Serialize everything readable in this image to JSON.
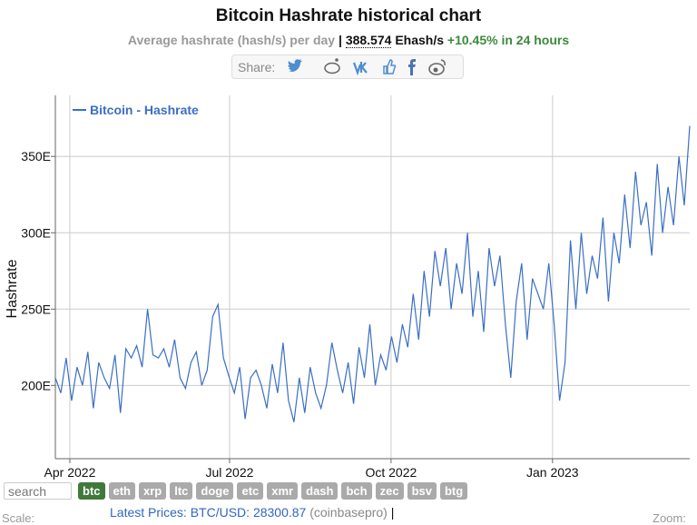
{
  "header": {
    "title": "Bitcoin Hashrate historical chart",
    "subtitle": "Average hashrate (hash/s) per day",
    "separator": "|",
    "current_value": 388.574,
    "current_unit": "Ehash/s",
    "change": "+10.45% in 24 hours"
  },
  "share": {
    "label": "Share:"
  },
  "chart_data": {
    "type": "line",
    "ylabel": "Hashrate",
    "ylim": [
      152,
      390
    ],
    "yticks": [
      {
        "value": 200,
        "label": "200E"
      },
      {
        "value": 250,
        "label": "250E"
      },
      {
        "value": 300,
        "label": "300E"
      },
      {
        "value": 350,
        "label": "350E"
      }
    ],
    "xticks": [
      {
        "value": "2022-04",
        "label": "Apr 2022"
      },
      {
        "value": "2022-07",
        "label": "Jul 2022"
      },
      {
        "value": "2022-10",
        "label": "Oct 2022"
      },
      {
        "value": "2023-01",
        "label": "Jan 2023"
      }
    ],
    "grid": true,
    "legend": "top-left",
    "series": [
      {
        "name": "Bitcoin - Hashrate",
        "color": "#3a6fc4",
        "values": [
          205,
          195,
          218,
          190,
          212,
          200,
          222,
          185,
          215,
          205,
          198,
          220,
          182,
          224,
          218,
          226,
          212,
          250,
          220,
          218,
          224,
          212,
          230,
          205,
          198,
          215,
          222,
          200,
          210,
          245,
          253,
          218,
          206,
          195,
          212,
          178,
          205,
          210,
          200,
          185,
          214,
          195,
          228,
          190,
          176,
          205,
          182,
          212,
          195,
          185,
          200,
          228,
          210,
          195,
          215,
          188,
          225,
          205,
          240,
          200,
          220,
          210,
          232,
          215,
          240,
          225,
          260,
          230,
          275,
          245,
          288,
          265,
          290,
          250,
          280,
          260,
          300,
          245,
          275,
          235,
          290,
          265,
          285,
          240,
          205,
          255,
          280,
          230,
          270,
          260,
          250,
          280,
          240,
          190,
          215,
          295,
          250,
          300,
          260,
          285,
          270,
          310,
          255,
          300,
          280,
          325,
          290,
          340,
          305,
          320,
          285,
          345,
          300,
          330,
          305,
          350,
          318,
          370
        ]
      }
    ]
  },
  "controls": {
    "search_placeholder": "search",
    "coins": [
      "btc",
      "eth",
      "xrp",
      "ltc",
      "doge",
      "etc",
      "xmr",
      "dash",
      "bch",
      "zec",
      "bsv",
      "btg"
    ],
    "active": "btc"
  },
  "prices": {
    "label": "Latest Prices: BTC/USD:",
    "value": 28300.87,
    "source": "(coinbasepro)",
    "separator": "|"
  },
  "footer": {
    "scale": "Scale:",
    "zoom": "Zoom:"
  }
}
